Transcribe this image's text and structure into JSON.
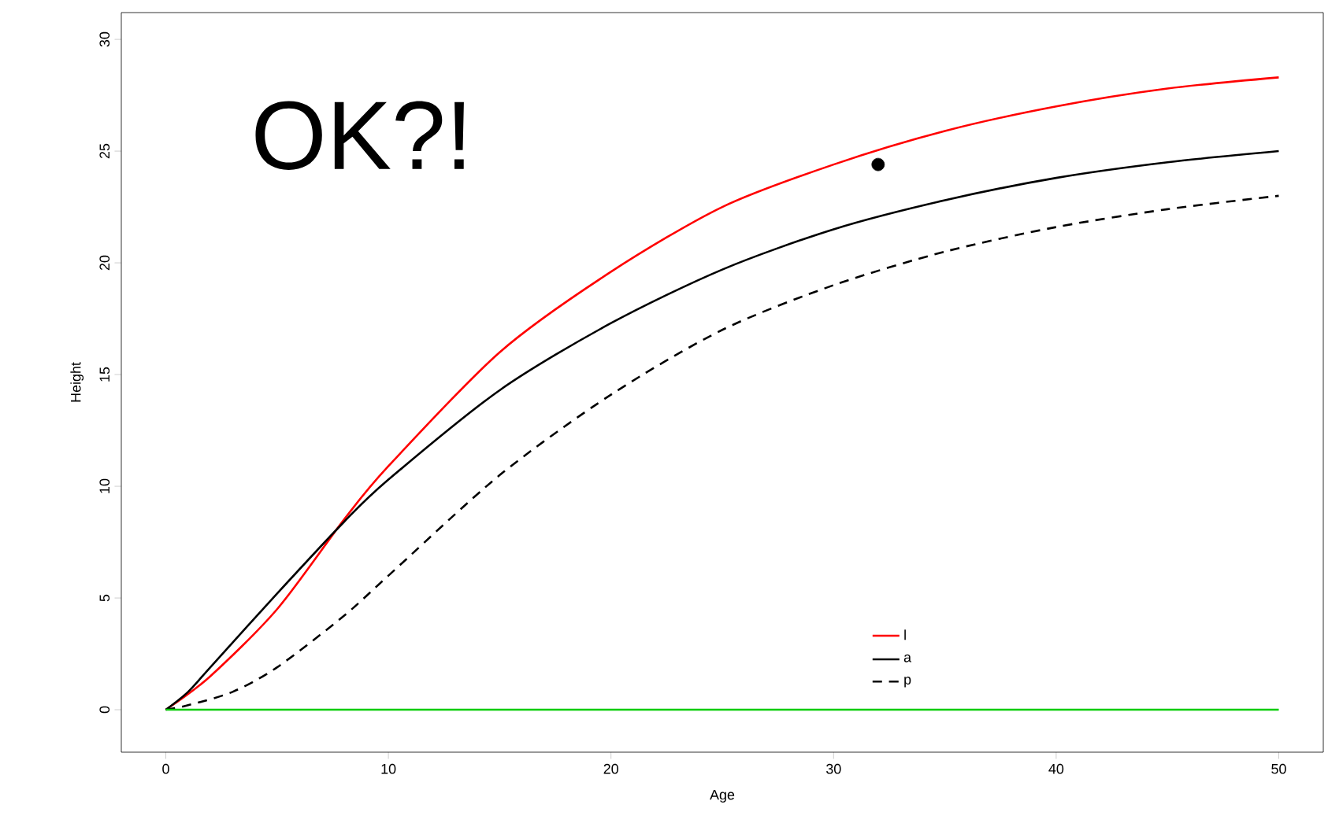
{
  "chart_data": {
    "type": "line",
    "xlabel": "Age",
    "ylabel": "Height",
    "annotations": [
      "OK?!"
    ],
    "xlim": [
      -2,
      52
    ],
    "ylim": [
      -1.9,
      31.2
    ],
    "xticks": [
      0,
      10,
      20,
      30,
      40,
      50
    ],
    "yticks": [
      0,
      5,
      10,
      15,
      20,
      25,
      30
    ],
    "grid": false,
    "legend": "bottom right",
    "series": [
      {
        "name": "l",
        "color": "#ff0000",
        "line_style": "solid",
        "x": [
          0,
          2,
          5,
          8,
          10,
          15,
          20,
          25,
          30,
          35,
          40,
          45,
          50
        ],
        "values": [
          0,
          1.5,
          4.5,
          8.5,
          10.9,
          16.0,
          19.6,
          22.5,
          24.4,
          25.9,
          27.0,
          27.8,
          28.3
        ]
      },
      {
        "name": "a",
        "color": "#000000",
        "line_style": "solid",
        "x": [
          0,
          1,
          2,
          5,
          8,
          10,
          15,
          20,
          25,
          30,
          35,
          40,
          45,
          50
        ],
        "values": [
          0,
          0.8,
          1.9,
          5.2,
          8.4,
          10.3,
          14.3,
          17.3,
          19.7,
          21.5,
          22.8,
          23.8,
          24.5,
          25.0
        ]
      },
      {
        "name": "p",
        "color": "#000000",
        "line_style": "dashed",
        "x": [
          0,
          1,
          3,
          5,
          8,
          10,
          15,
          20,
          25,
          30,
          35,
          40,
          45,
          50
        ],
        "values": [
          0,
          0.2,
          0.8,
          1.9,
          4.2,
          6.0,
          10.5,
          14.1,
          17.0,
          19.0,
          20.5,
          21.6,
          22.4,
          23.0
        ]
      },
      {
        "color": "#00cc00",
        "line_style": "solid",
        "x": [
          0,
          50
        ],
        "values": [
          0,
          0
        ]
      },
      {
        "type": "scatter",
        "color": "#000000",
        "x": [
          32
        ],
        "values": [
          24.4
        ]
      }
    ]
  }
}
